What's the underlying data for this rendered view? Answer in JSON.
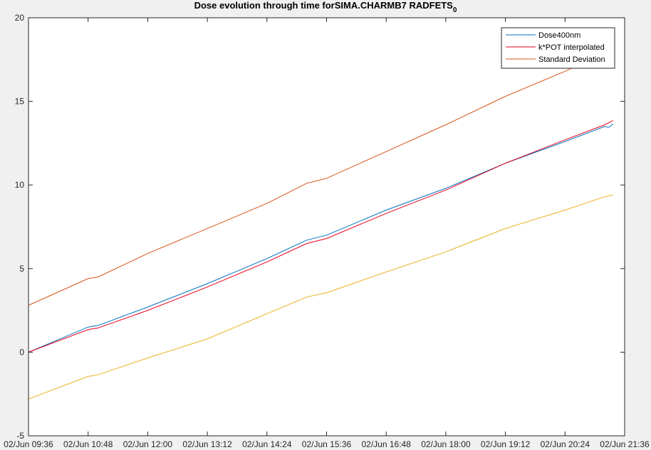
{
  "chart_data": {
    "type": "line",
    "title": "Dose evolution through time forSIMA.CHARMB7 RADFETS",
    "title_subscript": "0",
    "xlabel": "",
    "ylabel": "",
    "x_ticks": [
      "02/Jun 09:36",
      "02/Jun 10:48",
      "02/Jun 12:00",
      "02/Jun 13:12",
      "02/Jun 14:24",
      "02/Jun 15:36",
      "02/Jun 16:48",
      "02/Jun 18:00",
      "02/Jun 19:12",
      "02/Jun 20:24",
      "02/Jun 21:36"
    ],
    "xlim": [
      "02/Jun 09:36",
      "02/Jun 21:36"
    ],
    "ylim": [
      -5,
      20
    ],
    "y_ticks": [
      -5,
      0,
      5,
      10,
      15,
      20
    ],
    "grid": false,
    "legend_position": "top-right",
    "series": [
      {
        "name": "Dose400nm",
        "color": "#0072BD",
        "x": [
          "02/Jun 09:36",
          "02/Jun 10:48",
          "02/Jun 11:00",
          "02/Jun 12:00",
          "02/Jun 13:12",
          "02/Jun 14:24",
          "02/Jun 15:12",
          "02/Jun 15:36",
          "02/Jun 16:48",
          "02/Jun 18:00",
          "02/Jun 19:12",
          "02/Jun 20:24",
          "02/Jun 21:12",
          "02/Jun 21:17",
          "02/Jun 21:22"
        ],
        "values": [
          0.0,
          1.5,
          1.6,
          2.7,
          4.1,
          5.6,
          6.7,
          7.0,
          8.5,
          9.8,
          11.3,
          12.6,
          13.5,
          13.45,
          13.65
        ]
      },
      {
        "name": "k*POT interpolated",
        "color": "#E8001C",
        "x": [
          "02/Jun 09:36",
          "02/Jun 10:48",
          "02/Jun 11:00",
          "02/Jun 12:00",
          "02/Jun 13:12",
          "02/Jun 14:24",
          "02/Jun 15:12",
          "02/Jun 15:36",
          "02/Jun 16:48",
          "02/Jun 18:00",
          "02/Jun 19:12",
          "02/Jun 20:24",
          "02/Jun 21:12",
          "02/Jun 21:22"
        ],
        "values": [
          0.0,
          1.35,
          1.45,
          2.5,
          3.9,
          5.4,
          6.5,
          6.8,
          8.3,
          9.7,
          11.3,
          12.7,
          13.6,
          13.85
        ]
      },
      {
        "name": "Standard Deviation",
        "color": "#D95319",
        "x": [
          "02/Jun 09:36",
          "02/Jun 10:48",
          "02/Jun 11:00",
          "02/Jun 12:00",
          "02/Jun 13:12",
          "02/Jun 14:24",
          "02/Jun 15:12",
          "02/Jun 15:36",
          "02/Jun 16:48",
          "02/Jun 18:00",
          "02/Jun 19:12",
          "02/Jun 20:24",
          "02/Jun 21:00"
        ],
        "values": [
          2.8,
          4.4,
          4.5,
          5.9,
          7.4,
          8.9,
          10.1,
          10.4,
          12.0,
          13.6,
          15.3,
          16.8,
          17.6
        ]
      },
      {
        "color": "#EDB120",
        "x": [
          "02/Jun 09:36",
          "02/Jun 10:48",
          "02/Jun 11:00",
          "02/Jun 12:00",
          "02/Jun 13:12",
          "02/Jun 14:24",
          "02/Jun 15:12",
          "02/Jun 15:36",
          "02/Jun 16:48",
          "02/Jun 18:00",
          "02/Jun 19:12",
          "02/Jun 20:24",
          "02/Jun 21:12",
          "02/Jun 21:22"
        ],
        "values": [
          -2.8,
          -1.45,
          -1.35,
          -0.35,
          0.8,
          2.3,
          3.3,
          3.55,
          4.8,
          6.0,
          7.4,
          8.5,
          9.3,
          9.4
        ]
      }
    ]
  }
}
